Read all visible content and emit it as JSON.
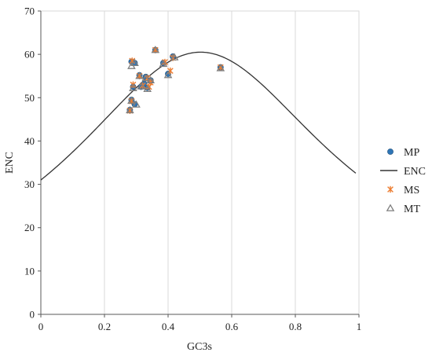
{
  "chart_data": {
    "type": "scatter",
    "xlabel": "GC3s",
    "ylabel": "ENC",
    "xlim": [
      0,
      1
    ],
    "ylim": [
      0,
      70
    ],
    "x_ticks": [
      "0",
      "0.2",
      "0.4",
      "0.6",
      "0.8",
      "1"
    ],
    "y_ticks": [
      "0",
      "10",
      "20",
      "30",
      "40",
      "50",
      "60",
      "70"
    ],
    "x_tick_values": [
      0,
      0.2,
      0.4,
      0.6,
      0.8,
      1
    ],
    "y_tick_values": [
      0,
      10,
      20,
      30,
      40,
      50,
      60,
      70
    ],
    "grid": "vertical",
    "legend_position": "right",
    "curve": {
      "name": "ENC",
      "formula": "2 + GC3s + 29 / (GC3s^2 + (1 - GC3s)^2)",
      "color": "#333333"
    },
    "series": [
      {
        "name": "MP",
        "marker": "circle",
        "color": "#2e75b6",
        "points": [
          [
            0.285,
            58.3
          ],
          [
            0.295,
            58.0
          ],
          [
            0.36,
            61.0
          ],
          [
            0.415,
            59.5
          ],
          [
            0.385,
            58.0
          ],
          [
            0.31,
            55.2
          ],
          [
            0.33,
            54.8
          ],
          [
            0.345,
            54.0
          ],
          [
            0.4,
            55.5
          ],
          [
            0.29,
            52.5
          ],
          [
            0.315,
            52.5
          ],
          [
            0.335,
            52.3
          ],
          [
            0.325,
            53.2
          ],
          [
            0.285,
            49.5
          ],
          [
            0.295,
            48.5
          ],
          [
            0.28,
            47.2
          ],
          [
            0.565,
            57.0
          ]
        ]
      },
      {
        "name": "MS",
        "marker": "star",
        "color": "#ed7d31",
        "points": [
          [
            0.287,
            58.5
          ],
          [
            0.36,
            61.0
          ],
          [
            0.415,
            59.2
          ],
          [
            0.39,
            58.2
          ],
          [
            0.407,
            56.2
          ],
          [
            0.31,
            55.0
          ],
          [
            0.335,
            54.5
          ],
          [
            0.345,
            53.5
          ],
          [
            0.29,
            53.0
          ],
          [
            0.32,
            52.8
          ],
          [
            0.34,
            52.5
          ],
          [
            0.285,
            49.2
          ],
          [
            0.28,
            47.0
          ],
          [
            0.565,
            57.0
          ]
        ]
      },
      {
        "name": "MT",
        "marker": "triangle",
        "color": "#7f7f7f",
        "points": [
          [
            0.285,
            57.3
          ],
          [
            0.295,
            58.0
          ],
          [
            0.36,
            61.0
          ],
          [
            0.42,
            59.3
          ],
          [
            0.385,
            57.8
          ],
          [
            0.31,
            55.0
          ],
          [
            0.33,
            54.5
          ],
          [
            0.345,
            54.0
          ],
          [
            0.4,
            55.2
          ],
          [
            0.29,
            52.2
          ],
          [
            0.315,
            52.6
          ],
          [
            0.335,
            52.0
          ],
          [
            0.285,
            49.3
          ],
          [
            0.3,
            48.4
          ],
          [
            0.28,
            47.1
          ],
          [
            0.565,
            56.8
          ]
        ]
      }
    ],
    "legend": [
      {
        "name": "MP",
        "marker": "circle",
        "color": "#2e75b6"
      },
      {
        "name": "ENC",
        "marker": "line",
        "color": "#333333"
      },
      {
        "name": "MS",
        "marker": "star",
        "color": "#ed7d31"
      },
      {
        "name": "MT",
        "marker": "triangle",
        "color": "#7f7f7f"
      }
    ]
  }
}
